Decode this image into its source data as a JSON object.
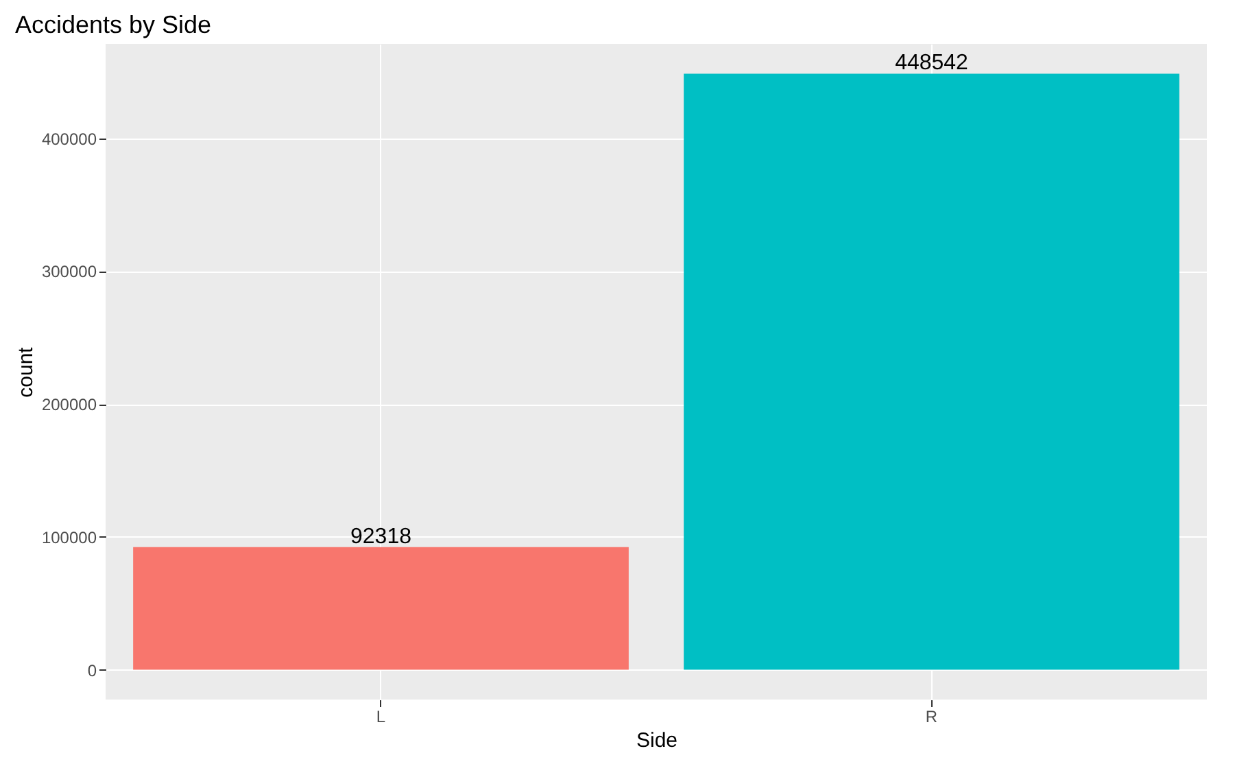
{
  "chart_data": {
    "type": "bar",
    "title": "Accidents by Side",
    "xlabel": "Side",
    "ylabel": "count",
    "categories": [
      "L",
      "R"
    ],
    "values": [
      92318,
      448542
    ],
    "colors": [
      "#f8766d",
      "#00bfc4"
    ],
    "ylim": [
      -22427,
      470969
    ],
    "yticks": [
      0,
      100000,
      200000,
      300000,
      400000
    ],
    "grid": true,
    "data_labels": true
  }
}
